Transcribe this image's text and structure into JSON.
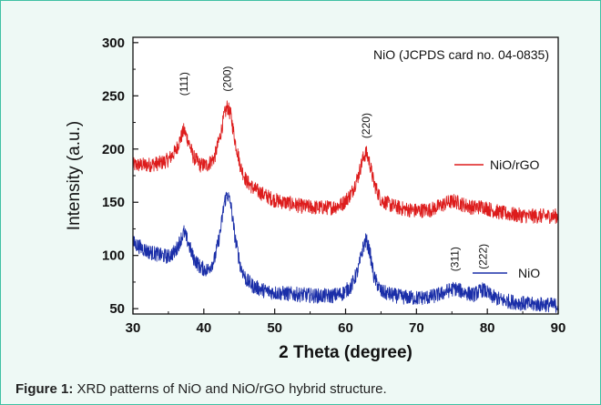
{
  "chart_data": {
    "type": "line",
    "xlabel": "2 Theta (degree)",
    "ylabel": "Intensity (a.u.)",
    "xlim": [
      30,
      90
    ],
    "ylim": [
      45,
      305
    ],
    "xticks": [
      30,
      40,
      50,
      60,
      70,
      80,
      90
    ],
    "yticks": [
      50,
      100,
      150,
      200,
      250,
      300
    ],
    "grid": false,
    "legend": "right",
    "annotation_reference": "NiO (JCPDS card no. 04-0835)",
    "peak_labels": [
      {
        "text": "(111)",
        "x": 37.2,
        "y": 250
      },
      {
        "text": "(200)",
        "x": 43.3,
        "y": 254
      },
      {
        "text": "(220)",
        "x": 62.9,
        "y": 210
      },
      {
        "text": "(311)",
        "x": 75.4,
        "y": 85
      },
      {
        "text": "(222)",
        "x": 79.4,
        "y": 87
      }
    ],
    "series": [
      {
        "name": "NiO/rGO",
        "color": "#dd1c1c",
        "x": [
          30,
          32,
          34,
          35,
          36,
          36.6,
          37.2,
          37.8,
          38.5,
          39.5,
          40.5,
          41.5,
          42.3,
          42.9,
          43.3,
          43.8,
          44.4,
          45.2,
          46,
          47,
          48.5,
          50,
          52,
          54,
          56,
          58,
          59.5,
          60.8,
          61.8,
          62.4,
          62.9,
          63.4,
          64,
          65,
          66.5,
          68,
          70,
          72,
          73.5,
          74.5,
          75.4,
          76.5,
          78,
          79.4,
          80.5,
          82,
          84,
          86,
          88,
          90
        ],
        "y": [
          185,
          185,
          187,
          190,
          198,
          208,
          218,
          208,
          193,
          185,
          185,
          192,
          212,
          232,
          240,
          232,
          208,
          183,
          170,
          163,
          157,
          152,
          149,
          146,
          145,
          145,
          148,
          158,
          175,
          190,
          197,
          187,
          168,
          152,
          147,
          144,
          142,
          143,
          147,
          150,
          151,
          148,
          145,
          146,
          143,
          140,
          138,
          137,
          137,
          137
        ]
      },
      {
        "name": "NiO",
        "color": "#1a2ea8",
        "x": [
          30,
          32,
          34,
          35,
          36,
          36.6,
          37.2,
          37.8,
          38.5,
          39.5,
          40.5,
          41.5,
          42.3,
          42.9,
          43.3,
          43.8,
          44.4,
          45.2,
          46,
          47,
          48.5,
          50,
          52,
          54,
          56,
          58,
          59.5,
          60.8,
          61.8,
          62.4,
          62.9,
          63.4,
          64,
          65,
          66.5,
          68,
          70,
          72,
          73.5,
          74.5,
          75.4,
          76.5,
          78,
          79.4,
          80.5,
          82,
          84,
          86,
          88,
          90
        ],
        "y": [
          112,
          104,
          100,
          99,
          104,
          113,
          122,
          112,
          98,
          89,
          86,
          96,
          121,
          150,
          158,
          148,
          117,
          89,
          77,
          71,
          67,
          65,
          64,
          63,
          62,
          62,
          64,
          71,
          87,
          106,
          115,
          104,
          80,
          66,
          63,
          61,
          60,
          61,
          64,
          67,
          69,
          66,
          63,
          68,
          62,
          58,
          56,
          54,
          54,
          53
        ]
      }
    ]
  },
  "caption": {
    "label": "Figure 1:",
    "text": " XRD patterns of NiO and NiO/rGO hybrid structure."
  }
}
